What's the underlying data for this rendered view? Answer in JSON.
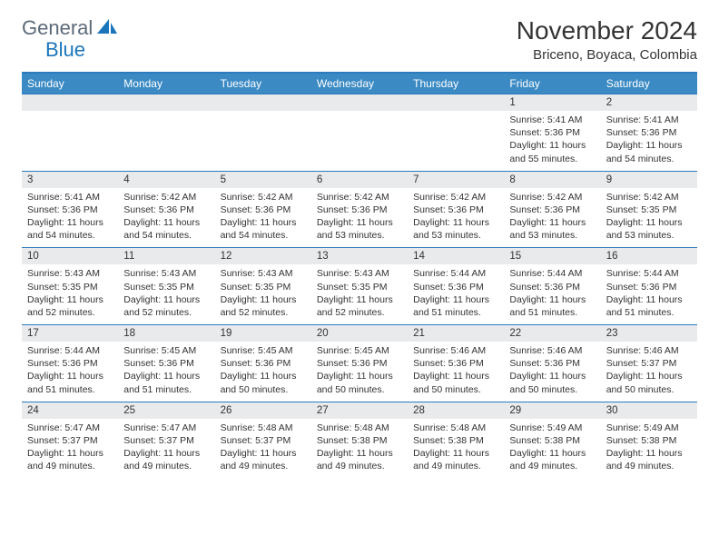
{
  "logo": {
    "text1": "General",
    "text2": "Blue"
  },
  "header": {
    "title": "November 2024",
    "location": "Briceno, Boyaca, Colombia"
  },
  "colors": {
    "header_bg": "#3b8ac4",
    "header_text": "#ffffff",
    "border": "#2b7bbd",
    "daynum_bg": "#e9eaec",
    "text": "#333333",
    "logo_gray": "#5c6a78",
    "logo_blue": "#1b75bb",
    "page_bg": "#ffffff"
  },
  "weekdays": [
    "Sunday",
    "Monday",
    "Tuesday",
    "Wednesday",
    "Thursday",
    "Friday",
    "Saturday"
  ],
  "weeks": [
    {
      "nums": [
        "",
        "",
        "",
        "",
        "",
        "1",
        "2"
      ],
      "cells": [
        {},
        {},
        {},
        {},
        {},
        {
          "sunrise": "Sunrise: 5:41 AM",
          "sunset": "Sunset: 5:36 PM",
          "daylight": "Daylight: 11 hours and 55 minutes."
        },
        {
          "sunrise": "Sunrise: 5:41 AM",
          "sunset": "Sunset: 5:36 PM",
          "daylight": "Daylight: 11 hours and 54 minutes."
        }
      ]
    },
    {
      "nums": [
        "3",
        "4",
        "5",
        "6",
        "7",
        "8",
        "9"
      ],
      "cells": [
        {
          "sunrise": "Sunrise: 5:41 AM",
          "sunset": "Sunset: 5:36 PM",
          "daylight": "Daylight: 11 hours and 54 minutes."
        },
        {
          "sunrise": "Sunrise: 5:42 AM",
          "sunset": "Sunset: 5:36 PM",
          "daylight": "Daylight: 11 hours and 54 minutes."
        },
        {
          "sunrise": "Sunrise: 5:42 AM",
          "sunset": "Sunset: 5:36 PM",
          "daylight": "Daylight: 11 hours and 54 minutes."
        },
        {
          "sunrise": "Sunrise: 5:42 AM",
          "sunset": "Sunset: 5:36 PM",
          "daylight": "Daylight: 11 hours and 53 minutes."
        },
        {
          "sunrise": "Sunrise: 5:42 AM",
          "sunset": "Sunset: 5:36 PM",
          "daylight": "Daylight: 11 hours and 53 minutes."
        },
        {
          "sunrise": "Sunrise: 5:42 AM",
          "sunset": "Sunset: 5:36 PM",
          "daylight": "Daylight: 11 hours and 53 minutes."
        },
        {
          "sunrise": "Sunrise: 5:42 AM",
          "sunset": "Sunset: 5:35 PM",
          "daylight": "Daylight: 11 hours and 53 minutes."
        }
      ]
    },
    {
      "nums": [
        "10",
        "11",
        "12",
        "13",
        "14",
        "15",
        "16"
      ],
      "cells": [
        {
          "sunrise": "Sunrise: 5:43 AM",
          "sunset": "Sunset: 5:35 PM",
          "daylight": "Daylight: 11 hours and 52 minutes."
        },
        {
          "sunrise": "Sunrise: 5:43 AM",
          "sunset": "Sunset: 5:35 PM",
          "daylight": "Daylight: 11 hours and 52 minutes."
        },
        {
          "sunrise": "Sunrise: 5:43 AM",
          "sunset": "Sunset: 5:35 PM",
          "daylight": "Daylight: 11 hours and 52 minutes."
        },
        {
          "sunrise": "Sunrise: 5:43 AM",
          "sunset": "Sunset: 5:35 PM",
          "daylight": "Daylight: 11 hours and 52 minutes."
        },
        {
          "sunrise": "Sunrise: 5:44 AM",
          "sunset": "Sunset: 5:36 PM",
          "daylight": "Daylight: 11 hours and 51 minutes."
        },
        {
          "sunrise": "Sunrise: 5:44 AM",
          "sunset": "Sunset: 5:36 PM",
          "daylight": "Daylight: 11 hours and 51 minutes."
        },
        {
          "sunrise": "Sunrise: 5:44 AM",
          "sunset": "Sunset: 5:36 PM",
          "daylight": "Daylight: 11 hours and 51 minutes."
        }
      ]
    },
    {
      "nums": [
        "17",
        "18",
        "19",
        "20",
        "21",
        "22",
        "23"
      ],
      "cells": [
        {
          "sunrise": "Sunrise: 5:44 AM",
          "sunset": "Sunset: 5:36 PM",
          "daylight": "Daylight: 11 hours and 51 minutes."
        },
        {
          "sunrise": "Sunrise: 5:45 AM",
          "sunset": "Sunset: 5:36 PM",
          "daylight": "Daylight: 11 hours and 51 minutes."
        },
        {
          "sunrise": "Sunrise: 5:45 AM",
          "sunset": "Sunset: 5:36 PM",
          "daylight": "Daylight: 11 hours and 50 minutes."
        },
        {
          "sunrise": "Sunrise: 5:45 AM",
          "sunset": "Sunset: 5:36 PM",
          "daylight": "Daylight: 11 hours and 50 minutes."
        },
        {
          "sunrise": "Sunrise: 5:46 AM",
          "sunset": "Sunset: 5:36 PM",
          "daylight": "Daylight: 11 hours and 50 minutes."
        },
        {
          "sunrise": "Sunrise: 5:46 AM",
          "sunset": "Sunset: 5:36 PM",
          "daylight": "Daylight: 11 hours and 50 minutes."
        },
        {
          "sunrise": "Sunrise: 5:46 AM",
          "sunset": "Sunset: 5:37 PM",
          "daylight": "Daylight: 11 hours and 50 minutes."
        }
      ]
    },
    {
      "nums": [
        "24",
        "25",
        "26",
        "27",
        "28",
        "29",
        "30"
      ],
      "cells": [
        {
          "sunrise": "Sunrise: 5:47 AM",
          "sunset": "Sunset: 5:37 PM",
          "daylight": "Daylight: 11 hours and 49 minutes."
        },
        {
          "sunrise": "Sunrise: 5:47 AM",
          "sunset": "Sunset: 5:37 PM",
          "daylight": "Daylight: 11 hours and 49 minutes."
        },
        {
          "sunrise": "Sunrise: 5:48 AM",
          "sunset": "Sunset: 5:37 PM",
          "daylight": "Daylight: 11 hours and 49 minutes."
        },
        {
          "sunrise": "Sunrise: 5:48 AM",
          "sunset": "Sunset: 5:38 PM",
          "daylight": "Daylight: 11 hours and 49 minutes."
        },
        {
          "sunrise": "Sunrise: 5:48 AM",
          "sunset": "Sunset: 5:38 PM",
          "daylight": "Daylight: 11 hours and 49 minutes."
        },
        {
          "sunrise": "Sunrise: 5:49 AM",
          "sunset": "Sunset: 5:38 PM",
          "daylight": "Daylight: 11 hours and 49 minutes."
        },
        {
          "sunrise": "Sunrise: 5:49 AM",
          "sunset": "Sunset: 5:38 PM",
          "daylight": "Daylight: 11 hours and 49 minutes."
        }
      ]
    }
  ]
}
